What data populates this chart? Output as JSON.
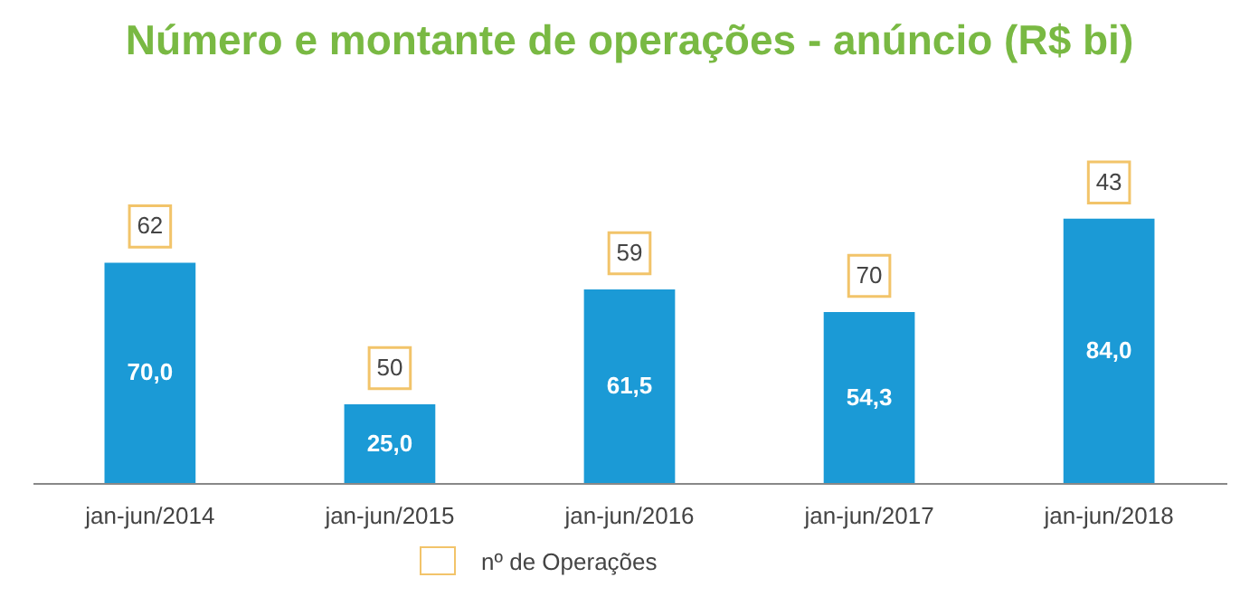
{
  "chart_data": {
    "type": "bar",
    "title": "Número e montante de operações - anúncio (R$ bi)",
    "categories": [
      "jan-jun/2014",
      "jan-jun/2015",
      "jan-jun/2016",
      "jan-jun/2017",
      "jan-jun/2018"
    ],
    "series": [
      {
        "color": "#1b9ad6",
        "values": [
          70.0,
          25.0,
          61.5,
          54.3,
          84.0
        ],
        "value_labels": [
          "70,0",
          "25,0",
          "61,5",
          "54,3",
          "84,0"
        ]
      }
    ],
    "grid": false,
    "annotations": [
      {
        "text": "62",
        "x": "jan-jun/2014",
        "y": 70.0
      },
      {
        "text": "50",
        "x": "jan-jun/2015",
        "y": 25.0
      },
      {
        "text": "59",
        "x": "jan-jun/2016",
        "y": 61.5
      },
      {
        "text": "70",
        "x": "jan-jun/2017",
        "y": 54.3
      },
      {
        "text": "43",
        "x": "jan-jun/2018",
        "y": 84.0
      },
      "nº de Operações"
    ]
  }
}
